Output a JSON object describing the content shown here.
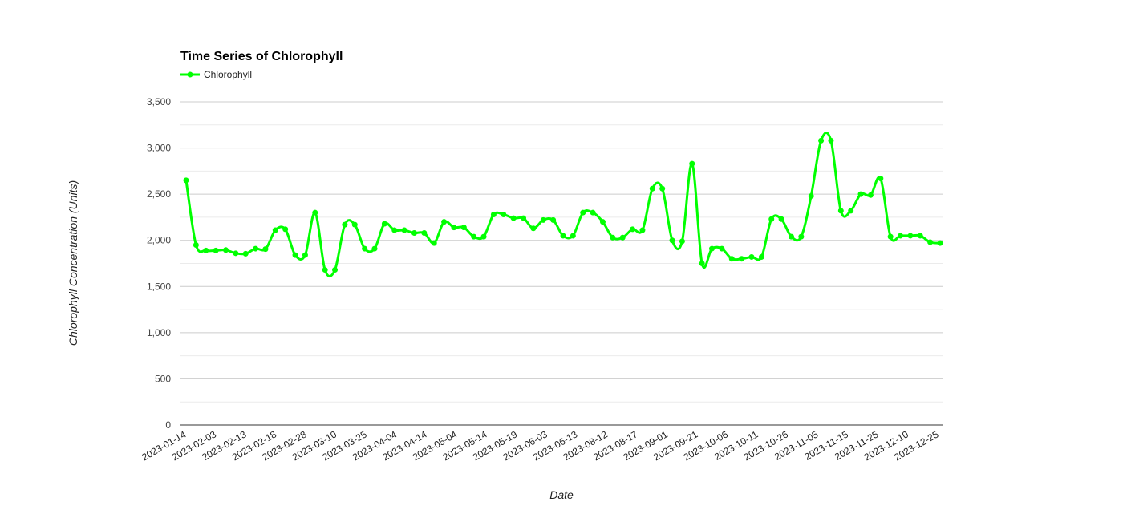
{
  "chart_data": {
    "type": "line",
    "title": "Time Series of Chlorophyll",
    "xlabel": "Date",
    "ylabel": "Chlorophyll Concentration (Units)",
    "ylim": [
      0,
      3500
    ],
    "yticks": [
      0,
      500,
      1000,
      1500,
      2000,
      2500,
      3000,
      3500
    ],
    "ytick_labels": [
      "0",
      "500",
      "1,000",
      "1,500",
      "2,000",
      "2,500",
      "3,000",
      "3,500"
    ],
    "grid": true,
    "legend_position": "top-left",
    "series_color": "#00ff00",
    "xtick_labels": [
      "2023-01-14",
      "2023-02-03",
      "2023-02-13",
      "2023-02-18",
      "2023-02-28",
      "2023-03-10",
      "2023-03-25",
      "2023-04-04",
      "2023-04-14",
      "2023-05-04",
      "2023-05-14",
      "2023-05-19",
      "2023-06-03",
      "2023-06-13",
      "2023-08-12",
      "2023-08-17",
      "2023-09-01",
      "2023-09-21",
      "2023-10-06",
      "2023-10-11",
      "2023-10-26",
      "2023-11-05",
      "2023-11-15",
      "2023-11-25",
      "2023-12-10",
      "2023-12-25"
    ],
    "series": [
      {
        "name": "Chlorophyll",
        "values": [
          2650,
          1950,
          1890,
          1890,
          1895,
          1860,
          1855,
          1910,
          1905,
          2110,
          2120,
          1840,
          1840,
          2300,
          1680,
          1680,
          2170,
          2170,
          1910,
          1910,
          2180,
          2110,
          2110,
          2080,
          2080,
          1970,
          2200,
          2140,
          2140,
          2040,
          2040,
          2280,
          2280,
          2240,
          2240,
          2130,
          2220,
          2220,
          2050,
          2050,
          2300,
          2300,
          2200,
          2030,
          2030,
          2120,
          2110,
          2560,
          2560,
          2000,
          1990,
          2830,
          1750,
          1910,
          1910,
          1800,
          1800,
          1820,
          1820,
          2230,
          2230,
          2040,
          2040,
          2480,
          3080,
          3080,
          2320,
          2320,
          2500,
          2490,
          2670,
          2040,
          2050,
          2050,
          2050,
          1980,
          1970
        ]
      }
    ]
  }
}
